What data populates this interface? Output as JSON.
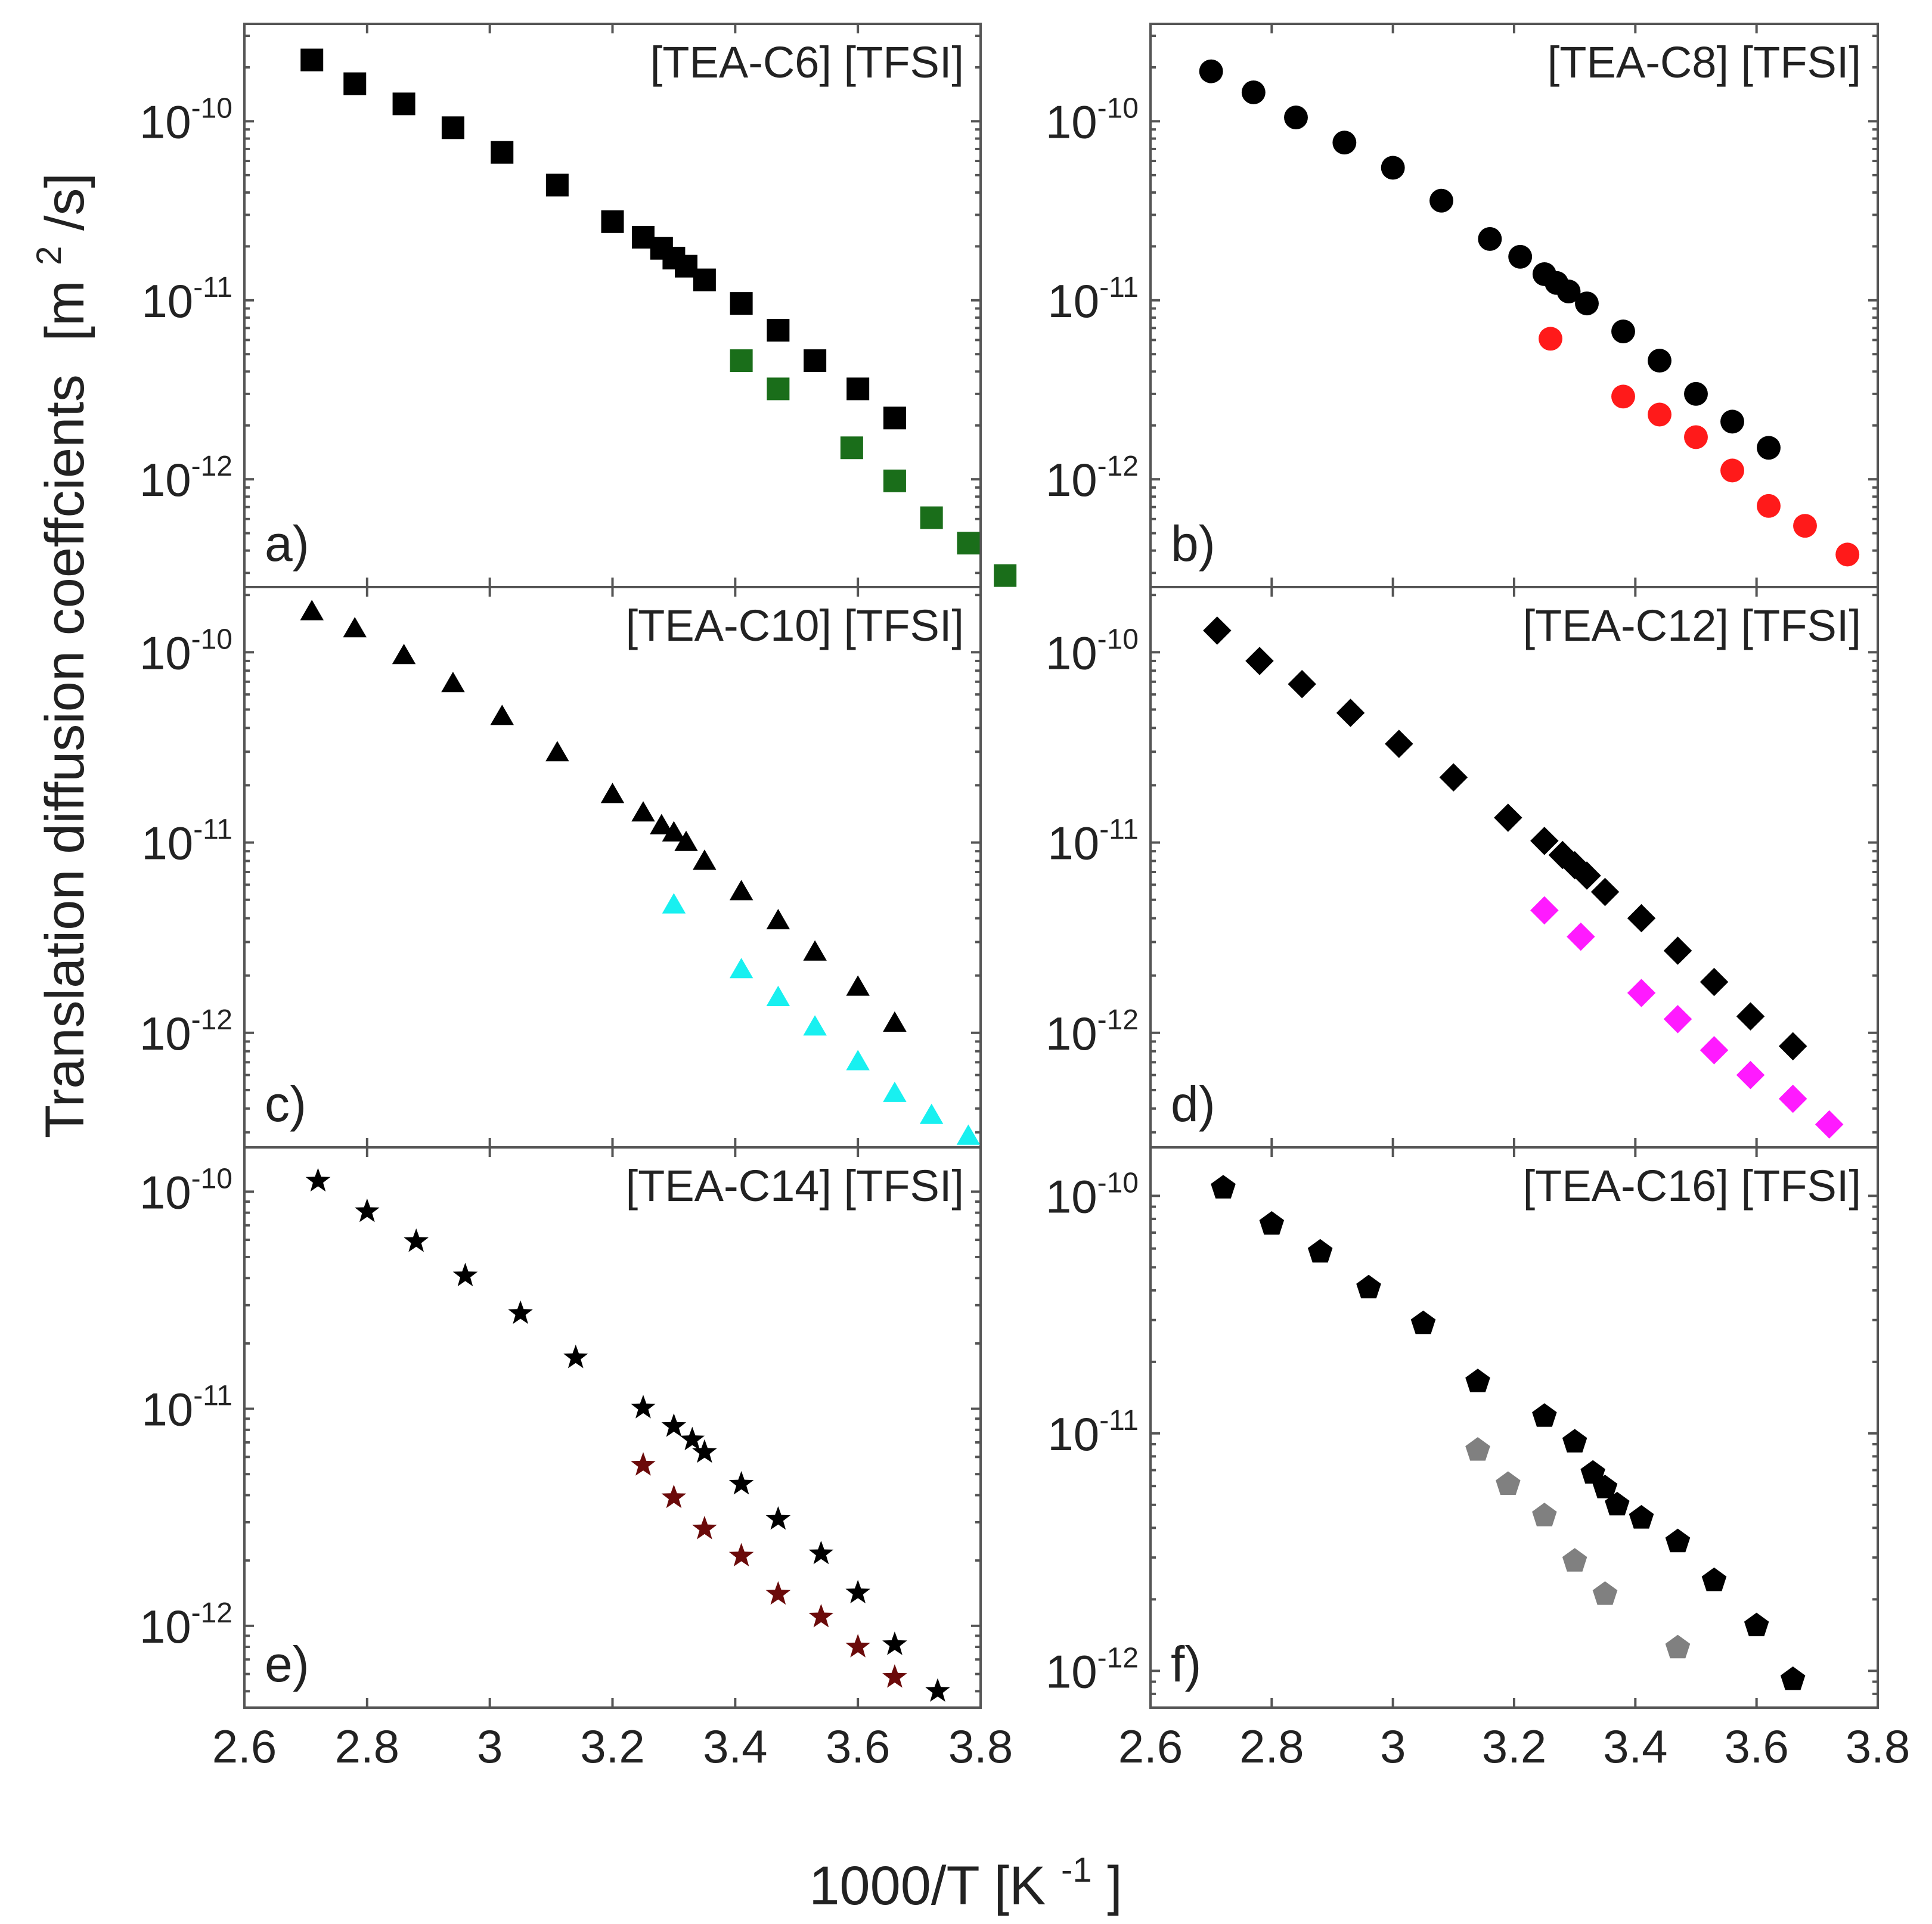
{
  "chart_data": {
    "type": "scatter",
    "ylabel": "Translation diffusion coeffcients",
    "ylabel_unit": "[m²/s]",
    "ylabel_unit_base": "[m",
    "ylabel_unit_exp": "2",
    "ylabel_unit_tail": "/s]",
    "xlabel": "1000/T [K⁻¹]",
    "xlabel_base": "1000/T [K",
    "xlabel_exp": "-1",
    "xlabel_tail": "]",
    "x_tick_labels": [
      "2.6",
      "2.8",
      "3",
      "3.2",
      "3.4",
      "3.6",
      "3.8"
    ],
    "x_ticks": [
      2.6,
      2.8,
      3.0,
      3.2,
      3.4,
      3.6,
      3.8
    ],
    "y_tick_base": "10",
    "y_tick_exponents": [
      "-10",
      "-11",
      "-12"
    ],
    "y_scale": "log",
    "panels": [
      {
        "id": "a",
        "label": "a)",
        "title": "[TEA-C6] [TFSI]",
        "marker": "square",
        "xlim": [
          2.6,
          3.8
        ],
        "ylim": [
          2.5e-13,
          3.5e-10
        ],
        "series": [
          {
            "name": "black",
            "color": "#000000",
            "x": [
              2.71,
              2.78,
              2.86,
              2.94,
              3.02,
              3.11,
              3.2,
              3.25,
              3.28,
              3.3,
              3.32,
              3.35,
              3.41,
              3.47,
              3.53,
              3.6,
              3.66
            ],
            "y": [
              2.2e-10,
              1.62e-10,
              1.25e-10,
              9.2e-11,
              6.7e-11,
              4.4e-11,
              2.75e-11,
              2.25e-11,
              1.95e-11,
              1.72e-11,
              1.55e-11,
              1.3e-11,
              9.6e-12,
              6.8e-12,
              4.6e-12,
              3.2e-12,
              2.2e-12
            ]
          },
          {
            "name": "green",
            "color": "#1a6e1a",
            "x": [
              3.41,
              3.47,
              3.59,
              3.66,
              3.72,
              3.78,
              3.84
            ],
            "y": [
              4.6e-12,
              3.2e-12,
              1.5e-12,
              9.8e-13,
              6.1e-13,
              4.4e-13,
              2.9e-13
            ]
          }
        ]
      },
      {
        "id": "b",
        "label": "b)",
        "title": "[TEA-C8] [TFSI]",
        "marker": "circle",
        "xlim": [
          2.6,
          3.8
        ],
        "ylim": [
          2.5e-13,
          3.5e-10
        ],
        "series": [
          {
            "name": "black",
            "color": "#000000",
            "x": [
              2.7,
              2.77,
              2.84,
              2.92,
              3.0,
              3.08,
              3.16,
              3.21,
              3.25,
              3.27,
              3.29,
              3.32,
              3.38,
              3.44,
              3.5,
              3.56,
              3.62
            ],
            "y": [
              1.9e-10,
              1.45e-10,
              1.05e-10,
              7.6e-11,
              5.5e-11,
              3.6e-11,
              2.2e-11,
              1.75e-11,
              1.4e-11,
              1.25e-11,
              1.12e-11,
              9.6e-12,
              6.7e-12,
              4.6e-12,
              3e-12,
              2.1e-12,
              1.5e-12
            ]
          },
          {
            "name": "red",
            "color": "#ff1a1a",
            "x": [
              3.26,
              3.38,
              3.44,
              3.5,
              3.56,
              3.62,
              3.68,
              3.75
            ],
            "y": [
              6.1e-12,
              2.9e-12,
              2.3e-12,
              1.72e-12,
              1.12e-12,
              7.1e-13,
              5.5e-13,
              3.8e-13
            ]
          }
        ]
      },
      {
        "id": "c",
        "label": "c)",
        "title": "[TEA-C10] [TFSI]",
        "marker": "triangle",
        "xlim": [
          2.6,
          3.8
        ],
        "ylim": [
          2.5e-13,
          2.2e-10
        ],
        "series": [
          {
            "name": "black",
            "color": "#000000",
            "x": [
              2.71,
              2.78,
              2.86,
              2.94,
              3.02,
              3.11,
              3.2,
              3.25,
              3.28,
              3.3,
              3.32,
              3.35,
              3.41,
              3.47,
              3.53,
              3.6,
              3.66
            ],
            "y": [
              1.6e-10,
              1.3e-10,
              9.4e-11,
              6.7e-11,
              4.5e-11,
              2.9e-11,
              1.75e-11,
              1.4e-11,
              1.2e-11,
              1.1e-11,
              9.8e-12,
              7.8e-12,
              5.4e-12,
              3.8e-12,
              2.6e-12,
              1.7e-12,
              1.1e-12
            ]
          },
          {
            "name": "cyan",
            "color": "#18f0f0",
            "x": [
              3.3,
              3.41,
              3.47,
              3.53,
              3.6,
              3.66,
              3.72,
              3.78
            ],
            "y": [
              4.6e-12,
              2.1e-12,
              1.5e-12,
              1.05e-12,
              6.9e-13,
              4.7e-13,
              3.6e-13,
              2.8e-13
            ]
          }
        ]
      },
      {
        "id": "d",
        "label": "d)",
        "title": "[TEA-C12] [TFSI]",
        "marker": "diamond",
        "xlim": [
          2.6,
          3.8
        ],
        "ylim": [
          2.5e-13,
          2.2e-10
        ],
        "series": [
          {
            "name": "black",
            "color": "#000000",
            "x": [
              2.71,
              2.78,
              2.85,
              2.93,
              3.01,
              3.1,
              3.19,
              3.25,
              3.28,
              3.3,
              3.32,
              3.35,
              3.41,
              3.47,
              3.53,
              3.59,
              3.66
            ],
            "y": [
              1.3e-10,
              9e-11,
              6.8e-11,
              4.8e-11,
              3.3e-11,
              2.2e-11,
              1.35e-11,
              1.02e-11,
              8.6e-12,
              7.6e-12,
              6.7e-12,
              5.5e-12,
              4e-12,
              2.7e-12,
              1.85e-12,
              1.22e-12,
              8.5e-13
            ]
          },
          {
            "name": "magenta",
            "color": "#ff1aff",
            "x": [
              3.25,
              3.31,
              3.41,
              3.47,
              3.53,
              3.59,
              3.66,
              3.72
            ],
            "y": [
              4.4e-12,
              3.2e-12,
              1.62e-12,
              1.18e-12,
              8.1e-13,
              6e-13,
              4.5e-13,
              3.3e-13
            ]
          }
        ]
      },
      {
        "id": "e",
        "label": "e)",
        "title": "[TEA-C14] [TFSI]",
        "marker": "star",
        "xlim": [
          2.6,
          3.8
        ],
        "ylim": [
          4.2e-13,
          1.6e-10
        ],
        "series": [
          {
            "name": "black",
            "color": "#000000",
            "x": [
              2.72,
              2.8,
              2.88,
              2.96,
              3.05,
              3.14,
              3.25,
              3.3,
              3.33,
              3.35,
              3.41,
              3.47,
              3.54,
              3.6,
              3.66,
              3.73
            ],
            "y": [
              1.12e-10,
              8.1e-11,
              5.9e-11,
              4.1e-11,
              2.75e-11,
              1.72e-11,
              1.01e-11,
              8.3e-12,
              7.2e-12,
              6.3e-12,
              4.5e-12,
              3.1e-12,
              2.15e-12,
              1.42e-12,
              8.2e-13,
              5e-13
            ]
          },
          {
            "name": "darkred",
            "color": "#6b0a0a",
            "x": [
              3.25,
              3.3,
              3.35,
              3.41,
              3.47,
              3.54,
              3.6,
              3.66
            ],
            "y": [
              5.5e-12,
              3.9e-12,
              2.8e-12,
              2.1e-12,
              1.4e-12,
              1.1e-12,
              8e-13,
              5.8e-13
            ]
          }
        ]
      },
      {
        "id": "f",
        "label": "f)",
        "title": "[TEA-C16] [TFSI]",
        "marker": "pentagon",
        "xlim": [
          2.6,
          3.8
        ],
        "ylim": [
          7e-13,
          1.6e-10
        ],
        "series": [
          {
            "name": "black",
            "color": "#000000",
            "x": [
              2.72,
              2.8,
              2.88,
              2.96,
              3.05,
              3.14,
              3.25,
              3.3,
              3.33,
              3.35,
              3.37,
              3.41,
              3.47,
              3.53,
              3.6,
              3.66
            ],
            "y": [
              1.08e-10,
              7.6e-11,
              5.8e-11,
              4.1e-11,
              2.9e-11,
              1.65e-11,
              1.18e-11,
              9.2e-12,
              6.8e-12,
              5.9e-12,
              5e-12,
              4.4e-12,
              3.5e-12,
              2.4e-12,
              1.55e-12,
              9.2e-13
            ]
          },
          {
            "name": "gray",
            "color": "#808080",
            "x": [
              3.14,
              3.19,
              3.25,
              3.3,
              3.35,
              3.47
            ],
            "y": [
              8.5e-12,
              6.1e-12,
              4.5e-12,
              2.9e-12,
              2.1e-12,
              1.25e-12
            ]
          }
        ]
      }
    ]
  }
}
